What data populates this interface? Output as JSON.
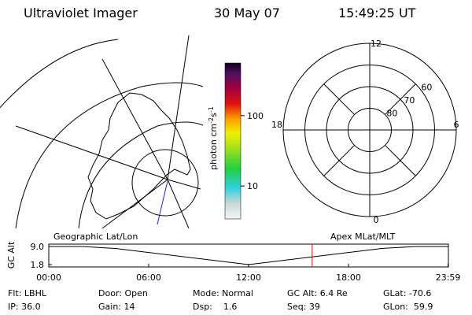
{
  "header": {
    "instrument": "Ultraviolet Imager",
    "date": "30 May 07",
    "time": "15:49:25 UT"
  },
  "colorbar": {
    "label_parts": [
      "photon cm",
      "-2",
      "s",
      "-1"
    ],
    "range": [
      3.4,
      560
    ],
    "ticks": [
      10,
      100
    ],
    "log": true
  },
  "polar": {
    "mlt_labels": [
      12,
      6,
      18,
      0
    ],
    "lat_circles": [
      80,
      70,
      60,
      50
    ],
    "lat_labels": [
      80,
      70,
      60
    ],
    "lat_range": [
      90,
      50
    ]
  },
  "altitude_plot": {
    "left_title": "Geographic Lat/Lon",
    "right_title": "Apex MLat/MLT",
    "ylabel": "GC Alt",
    "xlim": [
      0,
      24
    ],
    "ylim": [
      1.8,
      9.0
    ],
    "xticks": [
      {
        "value": 0,
        "label": "00:00"
      },
      {
        "value": 6,
        "label": "06:00"
      },
      {
        "value": 12,
        "label": "12:00"
      },
      {
        "value": 18,
        "label": "18:00"
      },
      {
        "value": 23.98,
        "label": "23:59"
      }
    ],
    "yticks": [
      {
        "value": 9.0,
        "label": "9.0"
      },
      {
        "value": 1.8,
        "label": "1.8"
      }
    ],
    "x": [
      0,
      2,
      4,
      6,
      8,
      10,
      12,
      14,
      16,
      18,
      20,
      22,
      23.98
    ],
    "values": [
      9.0,
      9.0,
      8.2,
      6.6,
      5.0,
      3.4,
      1.8,
      3.4,
      5.0,
      6.6,
      8.2,
      9.0,
      9.0
    ],
    "color": "#000000",
    "marker_time": 15.82,
    "marker_color": "#e00000"
  },
  "footer": {
    "rows": [
      [
        "Flt: LBHL",
        "Door: Open",
        "Mode: Normal",
        "GC Alt: 6.4 Re",
        "GLat: -70.6"
      ],
      [
        "IP: 36.0",
        "Gain: 14",
        "Dsp:    1.6",
        "Seq: 39",
        "GLon:  59.9"
      ]
    ]
  }
}
